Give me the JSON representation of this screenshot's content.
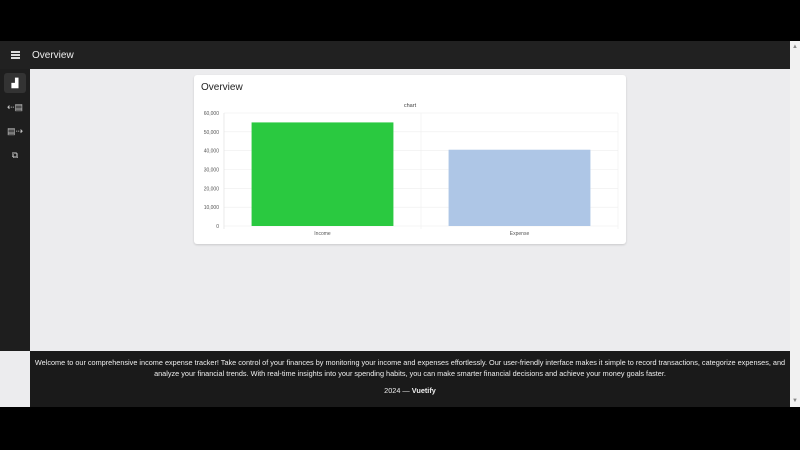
{
  "appbar": {
    "title": "Overview"
  },
  "sidebar": {
    "items": [
      {
        "icon": "chart-bar-icon",
        "active": true
      },
      {
        "icon": "income-icon"
      },
      {
        "icon": "expense-icon"
      },
      {
        "icon": "transactions-icon"
      }
    ]
  },
  "card": {
    "title": "Overview"
  },
  "chart_data": {
    "type": "bar",
    "title": "chart",
    "categories": [
      "Income",
      "Expense"
    ],
    "values": [
      55000,
      40500
    ],
    "colors": [
      "#2ac940",
      "#aec6e6"
    ],
    "ylim": [
      0,
      60000
    ],
    "yticks": [
      "0",
      "10,000",
      "20,000",
      "30,000",
      "40,000",
      "50,000",
      "60,000"
    ],
    "grid": true
  },
  "footer": {
    "text": "Welcome to our comprehensive income expense tracker! Take control of your finances by monitoring your income and expenses effortlessly. Our user-friendly interface makes it simple to record transactions, categorize expenses, and analyze your financial trends. With real-time insights into your spending habits, you can make smarter financial decisions and achieve your money goals faster.",
    "year": "2024 —",
    "brand": "Vuetify"
  }
}
